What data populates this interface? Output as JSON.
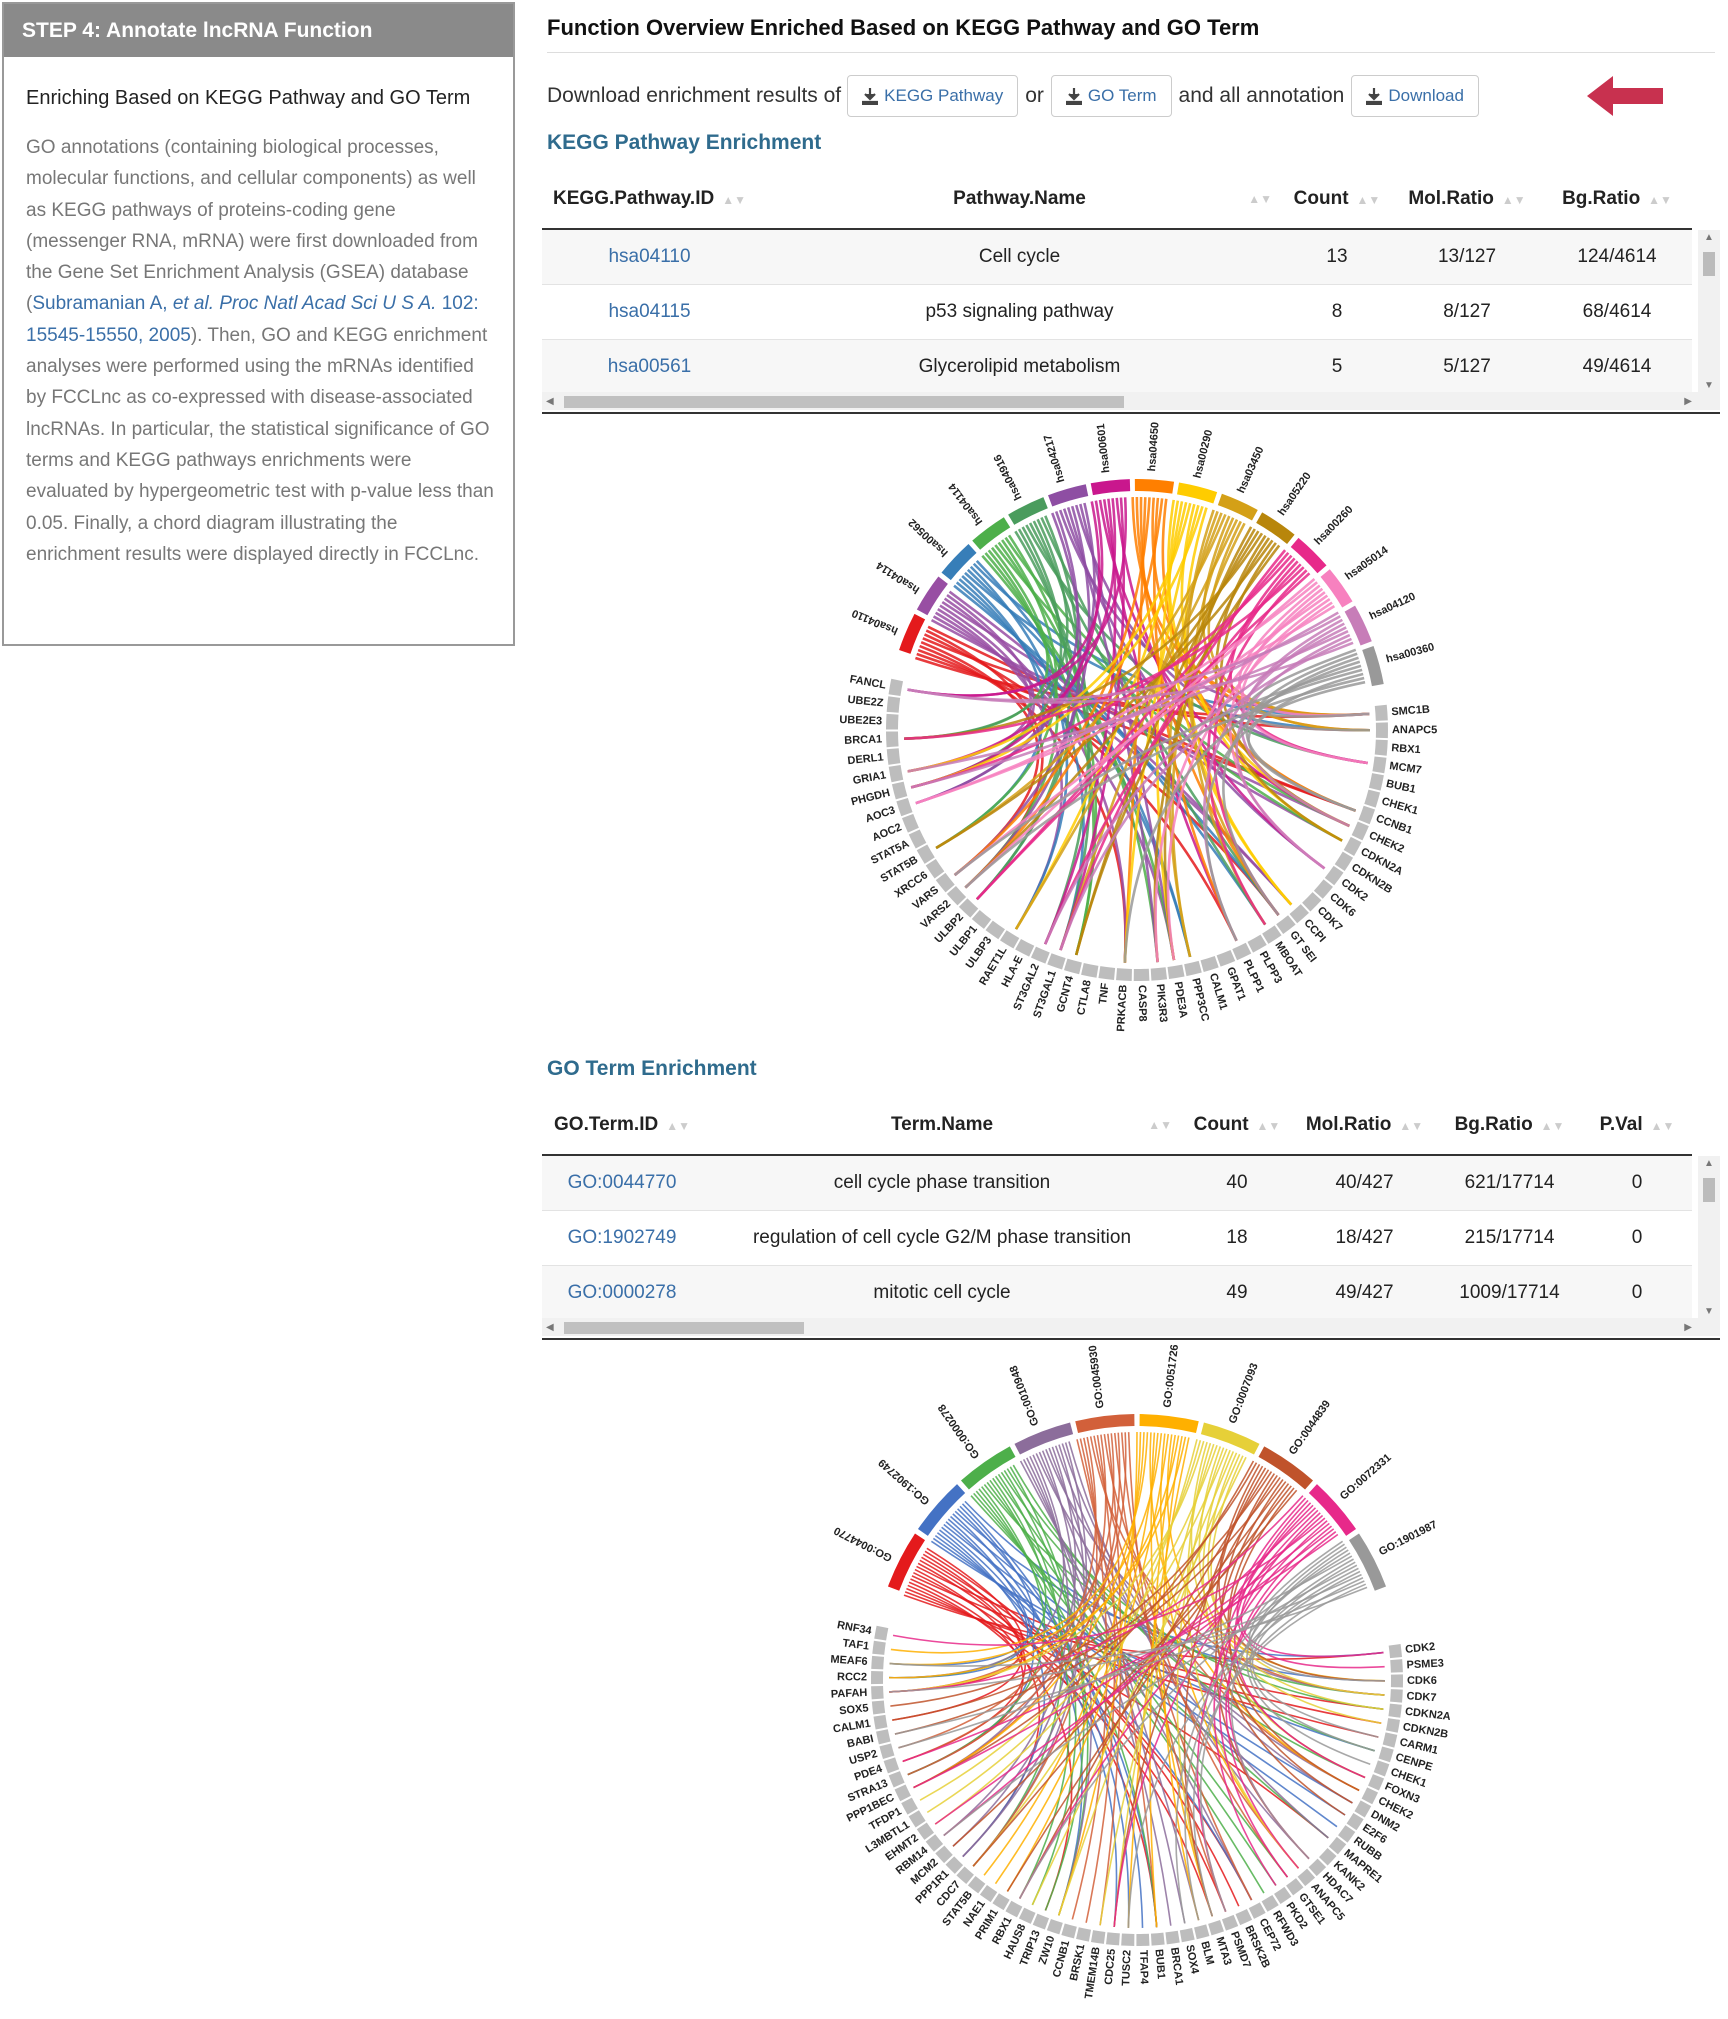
{
  "step_panel": {
    "header": "STEP 4: Annotate lncRNA Function",
    "subtitle": "Enriching Based on KEGG Pathway and GO Term",
    "text_before_link": "GO annotations (containing biological processes, molecular functions, and cellular components) as well as KEGG pathways of proteins-coding gene (messenger RNA, mRNA) were first downloaded from the Gene Set Enrichment Analysis (GSEA) database (",
    "link_authors": "Subramanian A, ",
    "link_etal": "et al. Proc Natl Acad Sci U S A.",
    "link_citation": " 102: 15545-15550, 2005",
    "text_after_link": "). Then, GO and KEGG enrichment analyses were performed using the mRNAs identified by FCCLnc as co-expressed with disease-associated lncRNAs. In particular, the statistical significance of GO terms and KEGG pathways enrichments were evaluated by hypergeometric test with p-value less than 0.05. Finally, a chord diagram illustrating the enrichment results were displayed directly in FCCLnc."
  },
  "overview": {
    "title": "Function Overview Enriched Based on KEGG Pathway and GO Term",
    "download_prefix": "Download enrichment results of",
    "kegg_button": "KEGG Pathway",
    "or_text": "or",
    "go_button": "GO Term",
    "and_text": "and all annotation",
    "download_button": "Download",
    "accent_color": "#c8314f",
    "link_color": "#3a6fa8"
  },
  "kegg": {
    "section_title": "KEGG Pathway Enrichment",
    "columns": [
      "KEGG.Pathway.ID",
      "Pathway.Name",
      "Count",
      "Mol.Ratio",
      "Bg.Ratio"
    ],
    "rows": [
      [
        "hsa04110",
        "Cell cycle",
        "13",
        "13/127",
        "124/4614"
      ],
      [
        "hsa04115",
        "p53 signaling pathway",
        "8",
        "8/127",
        "68/4614"
      ],
      [
        "hsa00561",
        "Glycerolipid metabolism",
        "5",
        "5/127",
        "49/4614"
      ]
    ],
    "chord_top_labels": [
      "hsa04110",
      "hsa04114",
      "hsa00562",
      "hsa04114",
      "hsa04916",
      "hsa04217",
      "hsa00601",
      "hsa04650",
      "hsa00290",
      "hsa03450",
      "hsa05220",
      "hsa00260",
      "hsa05014",
      "hsa04120",
      "hsa00360"
    ],
    "chord_gene_labels": [
      "SMC1B",
      "ANAPC5",
      "RBX1",
      "MCM7",
      "BUB1",
      "CHEK1",
      "CCNB1",
      "CHEK2",
      "CDKN2A",
      "CDKN2B",
      "CDK2",
      "CDK6",
      "CDK7",
      "CCPI",
      "GT SEI",
      "MBOAT",
      "PLPP3",
      "PLPP1",
      "GPAT1",
      "CALM1",
      "PPP3CC",
      "PDE3A",
      "PIK3R3",
      "CASP8",
      "PRKACB",
      "TNF",
      "CTLA8",
      "GCNT4",
      "ST3GAL1",
      "ST3GAL2",
      "HLA-E",
      "RAET1L",
      "ULBP3",
      "ULBP1",
      "ULBP2",
      "VARS2",
      "VARS",
      "XRCC6",
      "STAT5B",
      "STAT5A",
      "AOC2",
      "AOC3",
      "PHGDH",
      "GRIA1",
      "DERL1",
      "BRCA1",
      "UBE2E3",
      "UBE2Z",
      "FANCL"
    ],
    "chord_colors": [
      "#e41a1c",
      "#984ea3",
      "#377eb8",
      "#4daf4a",
      "#4a9c5d",
      "#8e4ea3",
      "#c9178d",
      "#ff7f00",
      "#ffcc00",
      "#d4a017",
      "#b8860b",
      "#e7298a",
      "#f781bf",
      "#c77db8",
      "#999999"
    ]
  },
  "go": {
    "section_title": "GO Term Enrichment",
    "columns": [
      "GO.Term.ID",
      "Term.Name",
      "Count",
      "Mol.Ratio",
      "Bg.Ratio",
      "P.Val"
    ],
    "rows": [
      [
        "GO:0044770",
        "cell cycle phase transition",
        "40",
        "40/427",
        "621/17714",
        "0"
      ],
      [
        "GO:1902749",
        "regulation of cell cycle G2/M phase transition",
        "18",
        "18/427",
        "215/17714",
        "0"
      ],
      [
        "GO:0000278",
        "mitotic cell cycle",
        "49",
        "49/427",
        "1009/17714",
        "0"
      ]
    ],
    "chord_top_labels": [
      "GO:0044770",
      "GO:1902749",
      "GO:0000278",
      "GO:0010948",
      "GO:0045930",
      "GO:0051726",
      "GO:0007093",
      "GO:0044839",
      "GO:0072331",
      "GO:1901987"
    ],
    "chord_gene_labels": [
      "CDK2",
      "PSME3",
      "CDK6",
      "CDK7",
      "CDKN2A",
      "CDKN2B",
      "CARM1",
      "CENPE",
      "CHEK1",
      "FOXN3",
      "CHEK2",
      "DNM2",
      "E2F6",
      "RUBB",
      "MAPRE1",
      "KANK2",
      "HDAC7",
      "ANAPC5",
      "GTSE1",
      "PKD2",
      "RFWD3",
      "CEP72",
      "BRSK2B",
      "PSMD7",
      "MTA3",
      "BLM",
      "SOX4",
      "BRCA1",
      "BUB1",
      "TFAP4",
      "TUSC2",
      "CDC25",
      "TMEM14B",
      "BRSK1",
      "CCNB1",
      "ZW10",
      "TRIP13",
      "HAUS8",
      "RBX1",
      "PRIM1",
      "NAE1",
      "STAT5B",
      "CDC7",
      "PPP1R1",
      "MCM2",
      "RBM14",
      "EHMT2",
      "L3MBTL1",
      "TFDP1",
      "PPP1BEC",
      "STRA13",
      "PDE4",
      "USP2",
      "BABI",
      "CALM1",
      "SOX5",
      "PAFAH",
      "RCC2",
      "MEAF6",
      "TAF1",
      "RNF34"
    ],
    "chord_colors": [
      "#e41a1c",
      "#4472c4",
      "#4daf4a",
      "#8c6d9b",
      "#d2603a",
      "#ffb000",
      "#e6d038",
      "#c0532b",
      "#e7298a",
      "#999999"
    ]
  }
}
